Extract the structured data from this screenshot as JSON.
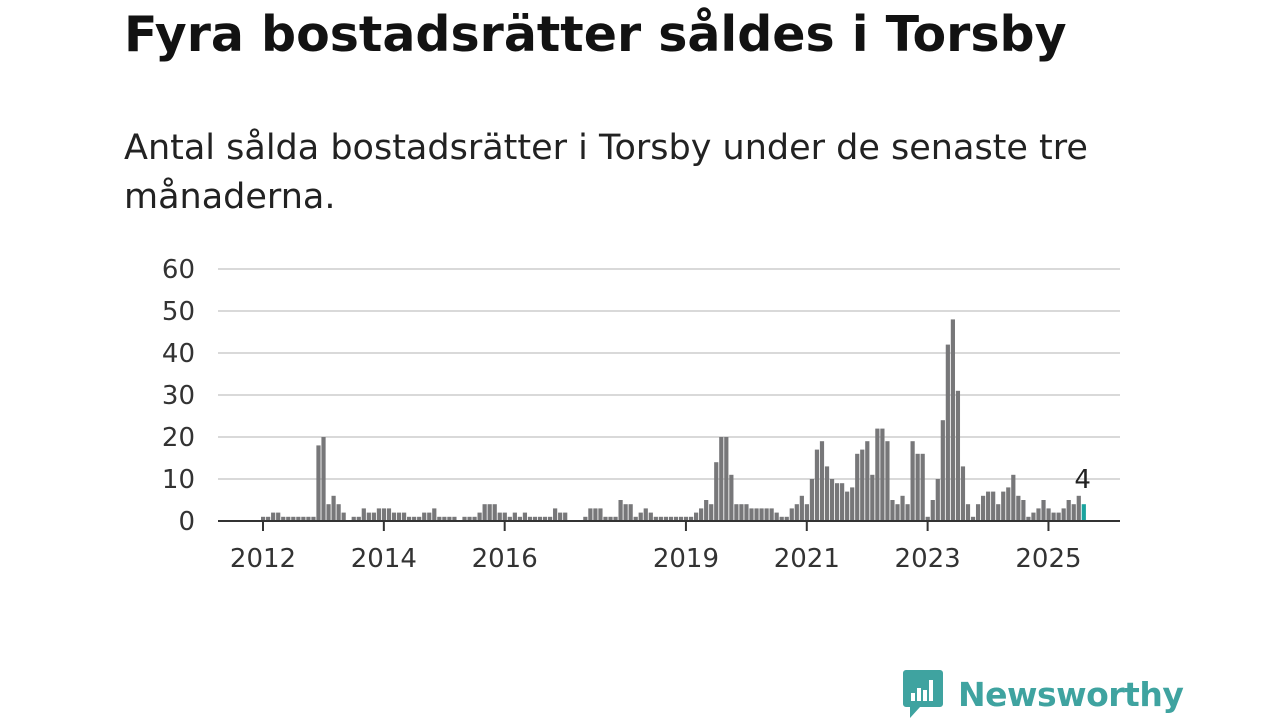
{
  "header": {
    "title": "Fyra bostadsrätter såldes i Torsby",
    "subtitle": "Antal sålda bostadsrätter i Torsby under de senaste tre månaderna."
  },
  "brand": {
    "name": "Newsworthy",
    "color": "#3fa3a0"
  },
  "colors": {
    "bar": "#777779",
    "highlight": "#1aa39e",
    "grid": "#d9d9d9",
    "axis": "#333333"
  },
  "chart_data": {
    "type": "bar",
    "title": "Fyra bostadsrätter såldes i Torsby",
    "subtitle": "Antal sålda bostadsrätter i Torsby under de senaste tre månaderna.",
    "xlabel": "",
    "ylabel": "",
    "ylim": [
      0,
      60
    ],
    "yticks": [
      0,
      10,
      20,
      30,
      40,
      50,
      60
    ],
    "xtick_labels": [
      "2012",
      "2014",
      "2016",
      "2019",
      "2021",
      "2023",
      "2025"
    ],
    "grid": true,
    "start": "2012-01",
    "frequency": "monthly",
    "values": [
      1,
      1,
      2,
      2,
      1,
      1,
      1,
      1,
      1,
      1,
      1,
      18,
      20,
      4,
      6,
      4,
      2,
      0,
      1,
      1,
      3,
      2,
      2,
      3,
      3,
      3,
      2,
      2,
      2,
      1,
      1,
      1,
      2,
      2,
      3,
      1,
      1,
      1,
      1,
      0,
      1,
      1,
      1,
      2,
      4,
      4,
      4,
      2,
      2,
      1,
      2,
      1,
      2,
      1,
      1,
      1,
      1,
      1,
      3,
      2,
      2,
      0,
      0,
      0,
      1,
      3,
      3,
      3,
      1,
      1,
      1,
      5,
      4,
      4,
      1,
      2,
      3,
      2,
      1,
      1,
      1,
      1,
      1,
      1,
      1,
      1,
      2,
      3,
      5,
      4,
      14,
      20,
      20,
      11,
      4,
      4,
      4,
      3,
      3,
      3,
      3,
      3,
      2,
      1,
      1,
      3,
      4,
      6,
      4,
      10,
      17,
      19,
      13,
      10,
      9,
      9,
      7,
      8,
      16,
      17,
      19,
      11,
      22,
      22,
      19,
      5,
      4,
      6,
      4,
      19,
      16,
      16,
      1,
      5,
      10,
      24,
      42,
      48,
      31,
      13,
      4,
      1,
      4,
      6,
      7,
      7,
      4,
      7,
      8,
      11,
      6,
      5,
      1,
      2,
      3,
      5,
      3,
      2,
      2,
      3,
      5,
      4,
      6,
      4
    ],
    "highlight": {
      "period": "last",
      "value": 4,
      "label": "4"
    }
  }
}
